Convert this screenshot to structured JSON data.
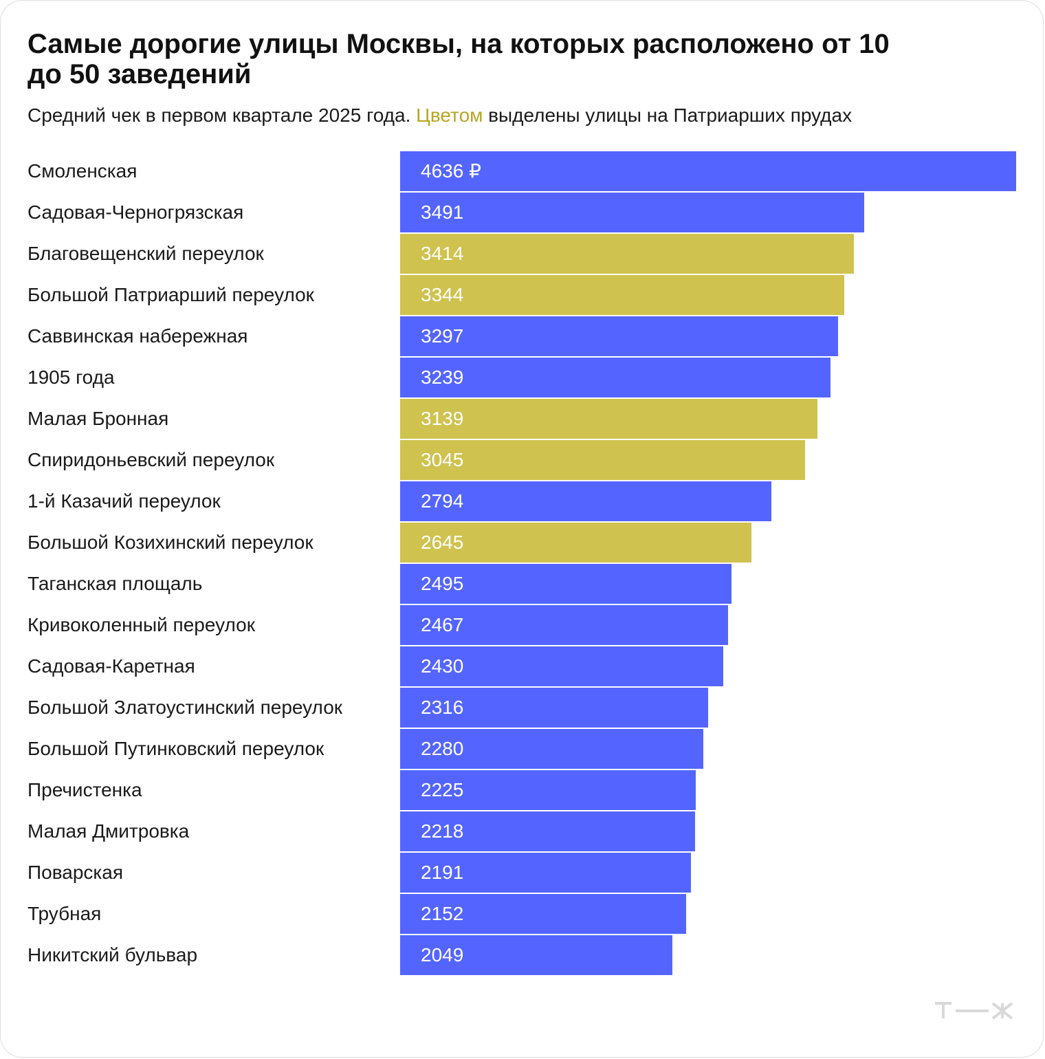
{
  "chart_data": {
    "type": "bar",
    "orientation": "horizontal",
    "title": "Самые дорогие улицы Москвы, на которых расположено от 10 до 50 заведений",
    "subtitle_before": "Средний чек в первом квартале 2025 года. ",
    "subtitle_highlight": "Цветом",
    "subtitle_after": " выделены улицы на Патриарших прудах",
    "colors": {
      "default": "#5465ff",
      "highlight": "#cfc24e",
      "highlight_text": "#b7a625"
    },
    "value_label_suffix_first": " ₽",
    "categories": [
      "Смоленская",
      "Садовая-Черногрязская",
      "Благовещенский переулок",
      "Большой Патриарший переулок",
      "Саввинская набережная",
      "1905 года",
      "Малая Бронная",
      "Спиридоньевский переулок",
      "1-й Казачий переулок",
      "Большой Козихинский переулок",
      "Таганская площаль",
      "Кривоколенный переулок",
      "Садовая-Каретная",
      "Большой Златоустинский переулок",
      "Большой Путинковский переулок",
      "Пречистенка",
      "Малая Дмитровка",
      "Поварская",
      "Трубная",
      "Никитский бульвар"
    ],
    "values": [
      4636,
      3491,
      3414,
      3344,
      3297,
      3239,
      3139,
      3045,
      2794,
      2645,
      2495,
      2467,
      2430,
      2316,
      2280,
      2225,
      2218,
      2191,
      2152,
      2049
    ],
    "highlighted": [
      false,
      false,
      true,
      true,
      false,
      false,
      true,
      true,
      false,
      true,
      false,
      false,
      false,
      false,
      false,
      false,
      false,
      false,
      false,
      false
    ],
    "value_labels": [
      "4636 ₽",
      "3491",
      "3414",
      "3344",
      "3297",
      "3239",
      "3139",
      "3045",
      "2794",
      "2645",
      "2495",
      "2467",
      "2430",
      "2316",
      "2280",
      "2225",
      "2218",
      "2191",
      "2152",
      "2049"
    ],
    "xlim": [
      0,
      4636
    ],
    "grid": false,
    "legend": "none"
  },
  "logo": {
    "name": "tzh-logo",
    "text": "т—ж"
  }
}
